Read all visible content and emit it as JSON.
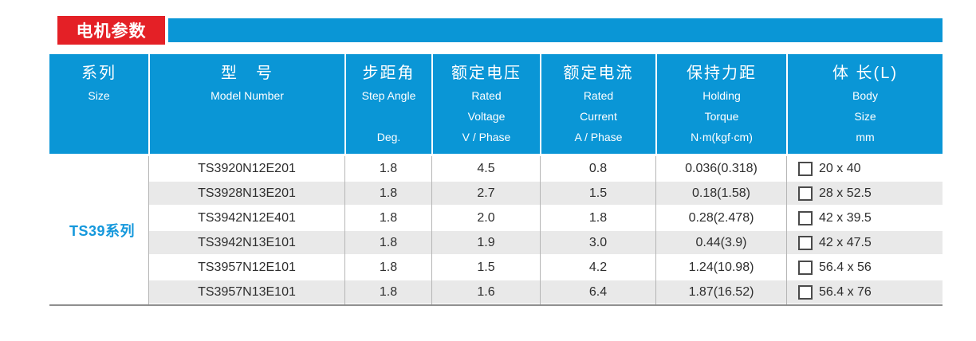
{
  "header": {
    "title": "电机参数"
  },
  "colors": {
    "red": "#e42026",
    "blue": "#0a96d6",
    "row_alt": "#e9e9e9",
    "text": "#2e2e2e",
    "series_blue": "#1598dc"
  },
  "table": {
    "series_label": "TS39系列",
    "columns": [
      {
        "key": "series",
        "zh": "系列",
        "en_lines": [
          "Size"
        ]
      },
      {
        "key": "model",
        "zh": "型　号",
        "en_lines": [
          "Model Number"
        ]
      },
      {
        "key": "step-angle",
        "zh": "步距角",
        "en_lines": [
          "Step Angle",
          "",
          "Deg."
        ]
      },
      {
        "key": "voltage",
        "zh": "额定电压",
        "en_lines": [
          "Rated",
          "Voltage",
          "V / Phase"
        ]
      },
      {
        "key": "current",
        "zh": "额定电流",
        "en_lines": [
          "Rated",
          "Current",
          "A / Phase"
        ]
      },
      {
        "key": "torque",
        "zh": "保持力距",
        "en_lines": [
          "Holding",
          "Torque",
          "N·m(kgf·cm)"
        ]
      },
      {
        "key": "body-size",
        "zh": "体 长(L)",
        "en_lines": [
          "Body",
          "Size",
          "mm"
        ]
      }
    ],
    "rows": [
      {
        "model": "TS3920N12E201",
        "step_angle": "1.8",
        "voltage": "4.5",
        "current": "0.8",
        "torque": "0.036(0.318)",
        "body_size": "20 x 40"
      },
      {
        "model": "TS3928N13E201",
        "step_angle": "1.8",
        "voltage": "2.7",
        "current": "1.5",
        "torque": "0.18(1.58)",
        "body_size": "28 x 52.5"
      },
      {
        "model": "TS3942N12E401",
        "step_angle": "1.8",
        "voltage": "2.0",
        "current": "1.8",
        "torque": "0.28(2.478)",
        "body_size": "42 x 39.5"
      },
      {
        "model": "TS3942N13E101",
        "step_angle": "1.8",
        "voltage": "1.9",
        "current": "3.0",
        "torque": "0.44(3.9)",
        "body_size": "42 x 47.5"
      },
      {
        "model": "TS3957N12E101",
        "step_angle": "1.8",
        "voltage": "1.5",
        "current": "4.2",
        "torque": "1.24(10.98)",
        "body_size": "56.4 x 56"
      },
      {
        "model": "TS3957N13E101",
        "step_angle": "1.8",
        "voltage": "1.6",
        "current": "6.4",
        "torque": "1.87(16.52)",
        "body_size": "56.4 x 76"
      }
    ]
  }
}
